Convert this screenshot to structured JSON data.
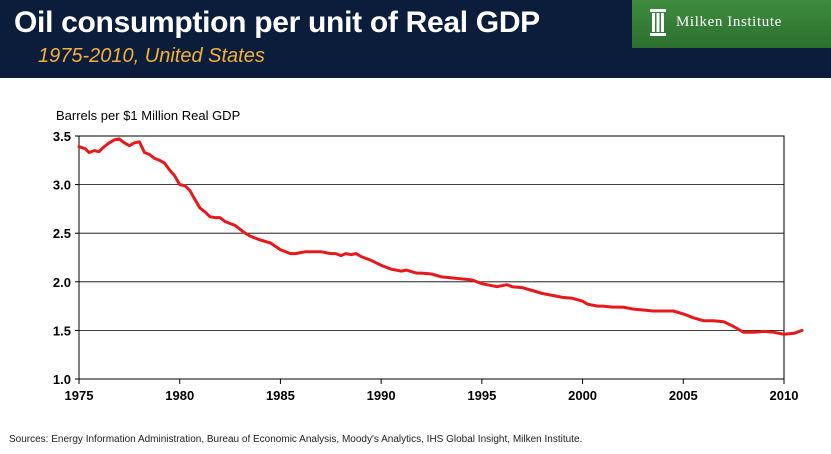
{
  "header": {
    "title": "Oil consumption per unit of Real GDP",
    "subtitle": "1975-2010, United States"
  },
  "logo": {
    "text": "Milken Institute",
    "icon": "pillars-icon"
  },
  "footer": {
    "sources": "Sources: Energy Information Administration, Bureau of Economic Analysis, Moody's Analytics, IHS Global Insight, Milken Institute."
  },
  "colors": {
    "header_bg": "#0b1d3b",
    "subtitle": "#f2b13a",
    "logo_bg": "#3a863a",
    "line": "#e8191c"
  },
  "chart_data": {
    "type": "line",
    "title": "",
    "ylabel": "Barrels per $1 Million Real GDP",
    "xlabel": "",
    "xlim": [
      1975,
      2010
    ],
    "ylim": [
      1.0,
      3.5
    ],
    "x_ticks": [
      1975,
      1980,
      1985,
      1990,
      1995,
      2000,
      2005,
      2010
    ],
    "y_ticks": [
      "1.0",
      "1.5",
      "2.0",
      "2.5",
      "3.0",
      "3.5"
    ],
    "grid": "horizontal",
    "series": [
      {
        "values": [
          [
            1975.0,
            3.39
          ],
          [
            1975.3,
            3.37
          ],
          [
            1975.5,
            3.33
          ],
          [
            1975.75,
            3.35
          ],
          [
            1976.0,
            3.34
          ],
          [
            1976.25,
            3.39
          ],
          [
            1976.5,
            3.43
          ],
          [
            1976.75,
            3.46
          ],
          [
            1977.0,
            3.47
          ],
          [
            1977.25,
            3.43
          ],
          [
            1977.5,
            3.4
          ],
          [
            1977.75,
            3.43
          ],
          [
            1978.0,
            3.44
          ],
          [
            1978.25,
            3.33
          ],
          [
            1978.5,
            3.31
          ],
          [
            1978.75,
            3.27
          ],
          [
            1979.0,
            3.25
          ],
          [
            1979.25,
            3.22
          ],
          [
            1979.5,
            3.15
          ],
          [
            1979.75,
            3.09
          ],
          [
            1980.0,
            3.0
          ],
          [
            1980.25,
            2.99
          ],
          [
            1980.5,
            2.94
          ],
          [
            1980.75,
            2.85
          ],
          [
            1981.0,
            2.76
          ],
          [
            1981.25,
            2.72
          ],
          [
            1981.5,
            2.67
          ],
          [
            1981.75,
            2.66
          ],
          [
            1982.0,
            2.66
          ],
          [
            1982.25,
            2.62
          ],
          [
            1982.5,
            2.6
          ],
          [
            1982.75,
            2.58
          ],
          [
            1983.0,
            2.54
          ],
          [
            1983.25,
            2.5
          ],
          [
            1983.5,
            2.47
          ],
          [
            1983.75,
            2.45
          ],
          [
            1984.0,
            2.43
          ],
          [
            1984.5,
            2.4
          ],
          [
            1985.0,
            2.33
          ],
          [
            1985.5,
            2.29
          ],
          [
            1985.75,
            2.29
          ],
          [
            1986.0,
            2.3
          ],
          [
            1986.25,
            2.31
          ],
          [
            1986.75,
            2.31
          ],
          [
            1987.0,
            2.31
          ],
          [
            1987.5,
            2.29
          ],
          [
            1987.75,
            2.29
          ],
          [
            1988.0,
            2.27
          ],
          [
            1988.25,
            2.29
          ],
          [
            1988.5,
            2.28
          ],
          [
            1988.75,
            2.29
          ],
          [
            1989.0,
            2.26
          ],
          [
            1989.5,
            2.22
          ],
          [
            1990.0,
            2.17
          ],
          [
            1990.5,
            2.13
          ],
          [
            1991.0,
            2.11
          ],
          [
            1991.25,
            2.12
          ],
          [
            1991.75,
            2.09
          ],
          [
            1992.0,
            2.09
          ],
          [
            1992.5,
            2.08
          ],
          [
            1993.0,
            2.05
          ],
          [
            1993.5,
            2.04
          ],
          [
            1994.0,
            2.03
          ],
          [
            1994.5,
            2.02
          ],
          [
            1995.0,
            1.98
          ],
          [
            1995.5,
            1.96
          ],
          [
            1995.75,
            1.95
          ],
          [
            1996.0,
            1.96
          ],
          [
            1996.25,
            1.97
          ],
          [
            1996.5,
            1.95
          ],
          [
            1997.0,
            1.94
          ],
          [
            1997.5,
            1.91
          ],
          [
            1998.0,
            1.88
          ],
          [
            1998.5,
            1.86
          ],
          [
            1999.0,
            1.84
          ],
          [
            1999.5,
            1.83
          ],
          [
            2000.0,
            1.8
          ],
          [
            2000.25,
            1.77
          ],
          [
            2000.75,
            1.75
          ],
          [
            2001.0,
            1.75
          ],
          [
            2001.5,
            1.74
          ],
          [
            2002.0,
            1.74
          ],
          [
            2002.5,
            1.72
          ],
          [
            2003.0,
            1.71
          ],
          [
            2003.5,
            1.7
          ],
          [
            2004.0,
            1.7
          ],
          [
            2004.5,
            1.7
          ],
          [
            2005.0,
            1.67
          ],
          [
            2005.5,
            1.63
          ],
          [
            2006.0,
            1.6
          ],
          [
            2006.5,
            1.6
          ],
          [
            2007.0,
            1.59
          ],
          [
            2007.5,
            1.54
          ],
          [
            2008.0,
            1.48
          ],
          [
            2008.5,
            1.48
          ],
          [
            2009.0,
            1.49
          ],
          [
            2009.5,
            1.48
          ],
          [
            2010.0,
            1.46
          ],
          [
            2010.5,
            1.47
          ],
          [
            2010.9,
            1.5
          ]
        ]
      }
    ]
  }
}
